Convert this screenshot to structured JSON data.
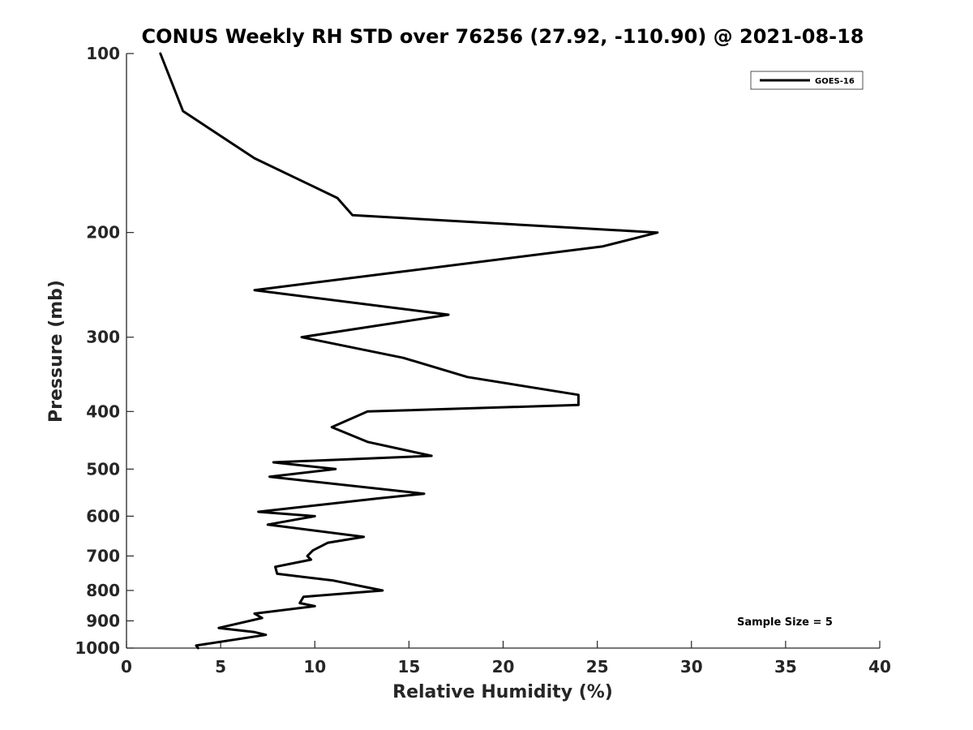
{
  "chart_data": {
    "type": "line",
    "title": "CONUS Weekly RH STD over 76256 (27.92, -110.90) @ 2021-08-18",
    "xlabel": "Relative Humidity (%)",
    "ylabel": "Pressure (mb)",
    "xlim": [
      0,
      40
    ],
    "ylim": [
      100,
      1000
    ],
    "y_scale": "log",
    "x_ticks": [
      0,
      5,
      10,
      15,
      20,
      25,
      30,
      35,
      40
    ],
    "x_tick_labels": [
      "0",
      "5",
      "10",
      "15",
      "20",
      "25",
      "30",
      "35",
      "40"
    ],
    "y_ticks": [
      100,
      200,
      300,
      400,
      500,
      600,
      700,
      800,
      900,
      1000
    ],
    "y_tick_labels": [
      "100",
      "200",
      "300",
      "400",
      "500",
      "600",
      "700",
      "800",
      "900",
      "1000"
    ],
    "legend_position": "top-right",
    "annotation": "Sample Size = 5",
    "series": [
      {
        "name": "GOES-16",
        "color": "#000000",
        "points": [
          [
            1.8,
            100
          ],
          [
            3.0,
            125
          ],
          [
            6.8,
            150
          ],
          [
            11.2,
            175
          ],
          [
            12.0,
            187
          ],
          [
            28.2,
            200
          ],
          [
            25.3,
            211
          ],
          [
            14.5,
            233
          ],
          [
            6.8,
            250
          ],
          [
            17.1,
            275
          ],
          [
            9.3,
            300
          ],
          [
            14.7,
            325
          ],
          [
            18.1,
            350
          ],
          [
            24.0,
            375
          ],
          [
            24.0,
            390
          ],
          [
            12.8,
            400
          ],
          [
            10.9,
            425
          ],
          [
            12.8,
            450
          ],
          [
            16.2,
            475
          ],
          [
            7.8,
            487
          ],
          [
            11.1,
            500
          ],
          [
            7.6,
            515
          ],
          [
            15.8,
            550
          ],
          [
            13.4,
            560
          ],
          [
            7.0,
            590
          ],
          [
            10.0,
            600
          ],
          [
            7.5,
            620
          ],
          [
            12.6,
            650
          ],
          [
            10.7,
            665
          ],
          [
            9.9,
            685
          ],
          [
            9.6,
            700
          ],
          [
            9.8,
            710
          ],
          [
            7.9,
            730
          ],
          [
            8.0,
            750
          ],
          [
            11.0,
            770
          ],
          [
            13.6,
            800
          ],
          [
            9.4,
            820
          ],
          [
            9.2,
            840
          ],
          [
            10.0,
            850
          ],
          [
            6.8,
            875
          ],
          [
            7.2,
            890
          ],
          [
            4.9,
            925
          ],
          [
            6.8,
            940
          ],
          [
            7.4,
            950
          ],
          [
            3.7,
            990
          ],
          [
            3.8,
            1000
          ]
        ]
      }
    ]
  }
}
